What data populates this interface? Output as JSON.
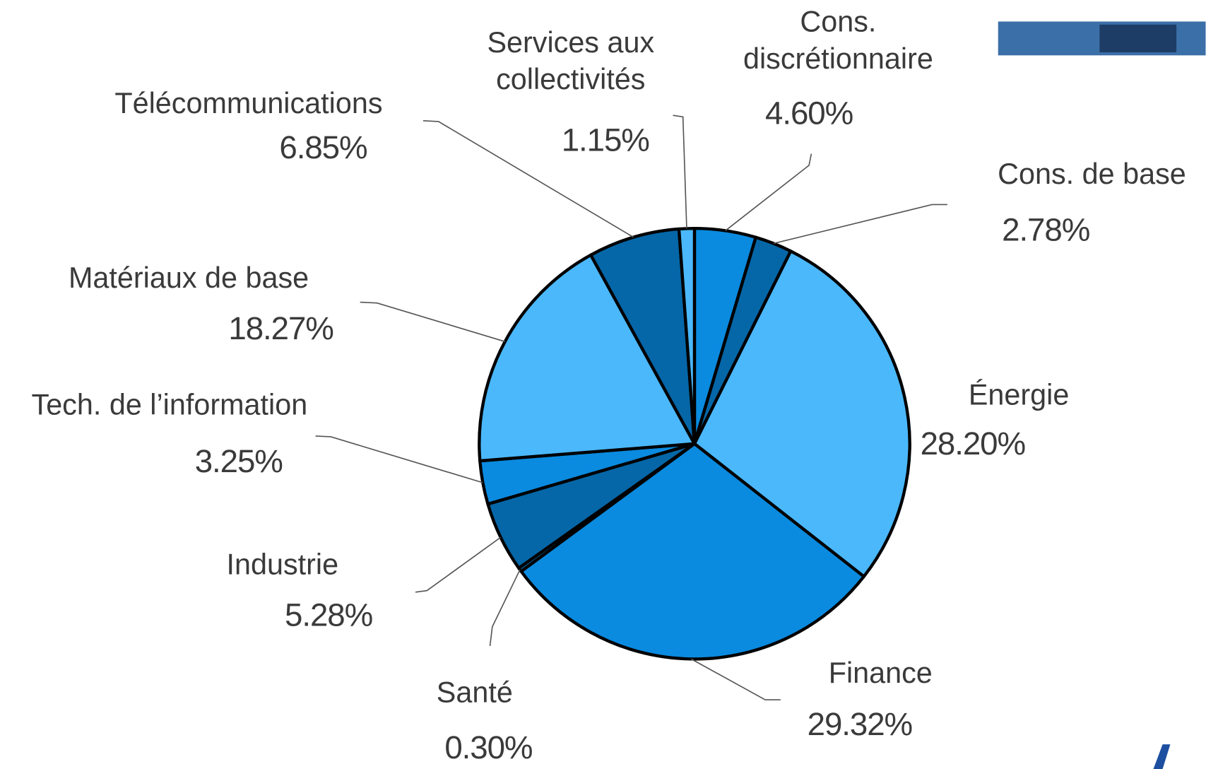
{
  "chart_data": {
    "type": "pie",
    "categories": [
      "Cons. discrétionnaire",
      "Cons. de base",
      "Énergie",
      "Finance",
      "Santé",
      "Industrie",
      "Tech. de l’information",
      "Matériaux de base",
      "Télécommunications",
      "Services aux collectivités"
    ],
    "values": [
      4.6,
      2.78,
      28.2,
      29.32,
      0.3,
      5.28,
      3.25,
      18.27,
      6.85,
      1.15
    ],
    "value_labels": [
      "4.60%",
      "2.78%",
      "28.20%",
      "29.32%",
      "0.30%",
      "5.28%",
      "3.25%",
      "18.27%",
      "6.85%",
      "1.15%"
    ],
    "colors": [
      "#0a8be0",
      "#0567a8",
      "#4ab8fb",
      "#0a8be0",
      "#0567a8",
      "#0567a8",
      "#0a8be0",
      "#4ab8fb",
      "#0567a8",
      "#4ab8fb"
    ]
  }
}
